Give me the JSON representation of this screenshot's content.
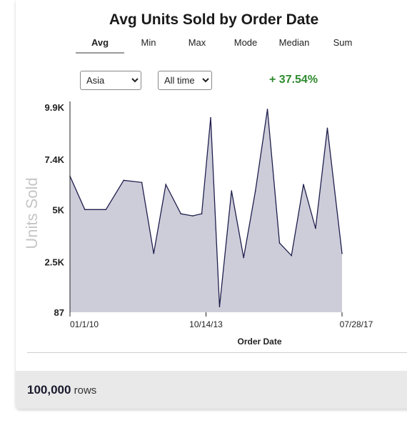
{
  "title": "Avg Units Sold by Order Date",
  "tabs": [
    {
      "label": "Avg",
      "active": true
    },
    {
      "label": "Min",
      "active": false
    },
    {
      "label": "Max",
      "active": false
    },
    {
      "label": "Mode",
      "active": false
    },
    {
      "label": "Median",
      "active": false
    },
    {
      "label": "Sum",
      "active": false
    }
  ],
  "region_select": {
    "value": "Asia",
    "options": [
      "Asia"
    ]
  },
  "time_select": {
    "value": "All time",
    "options": [
      "All time"
    ]
  },
  "change": "+ 37.54%",
  "footer": {
    "count": "100,000",
    "unit": "rows"
  },
  "colors": {
    "line": "#1f1f4d",
    "fill": "#cdcdda",
    "change": "#2e8b2e"
  },
  "chart_data": {
    "type": "area",
    "title": "Avg Units Sold by Order Date",
    "xlabel": "Order Date",
    "ylabel": "Units Sold",
    "x_ticks": [
      "01/1/10",
      "10/14/13",
      "07/28/17"
    ],
    "y_ticks": [
      {
        "label": "87",
        "value": 87
      },
      {
        "label": "2.5K",
        "value": 2500
      },
      {
        "label": "5K",
        "value": 5000
      },
      {
        "label": "7.4K",
        "value": 7400
      },
      {
        "label": "9.9K",
        "value": 9900
      }
    ],
    "ylim": [
      87,
      9900
    ],
    "x": [
      "2010-01-01",
      "2010-06-01",
      "2011-01-01",
      "2011-07-01",
      "2012-01-01",
      "2012-05-01",
      "2012-09-01",
      "2013-02-01",
      "2013-06-01",
      "2013-09-01",
      "2013-12-01",
      "2014-03-01",
      "2014-07-01",
      "2014-11-01",
      "2015-03-01",
      "2015-07-01",
      "2015-11-01",
      "2016-03-01",
      "2016-07-01",
      "2016-11-01",
      "2017-03-01",
      "2017-07-28"
    ],
    "values": [
      6600,
      5000,
      5000,
      6400,
      6300,
      2900,
      6200,
      4800,
      4700,
      4800,
      9400,
      350,
      5900,
      2700,
      5900,
      9800,
      3400,
      2800,
      6200,
      4100,
      8900,
      2900
    ],
    "grid": false,
    "legend": "none"
  }
}
